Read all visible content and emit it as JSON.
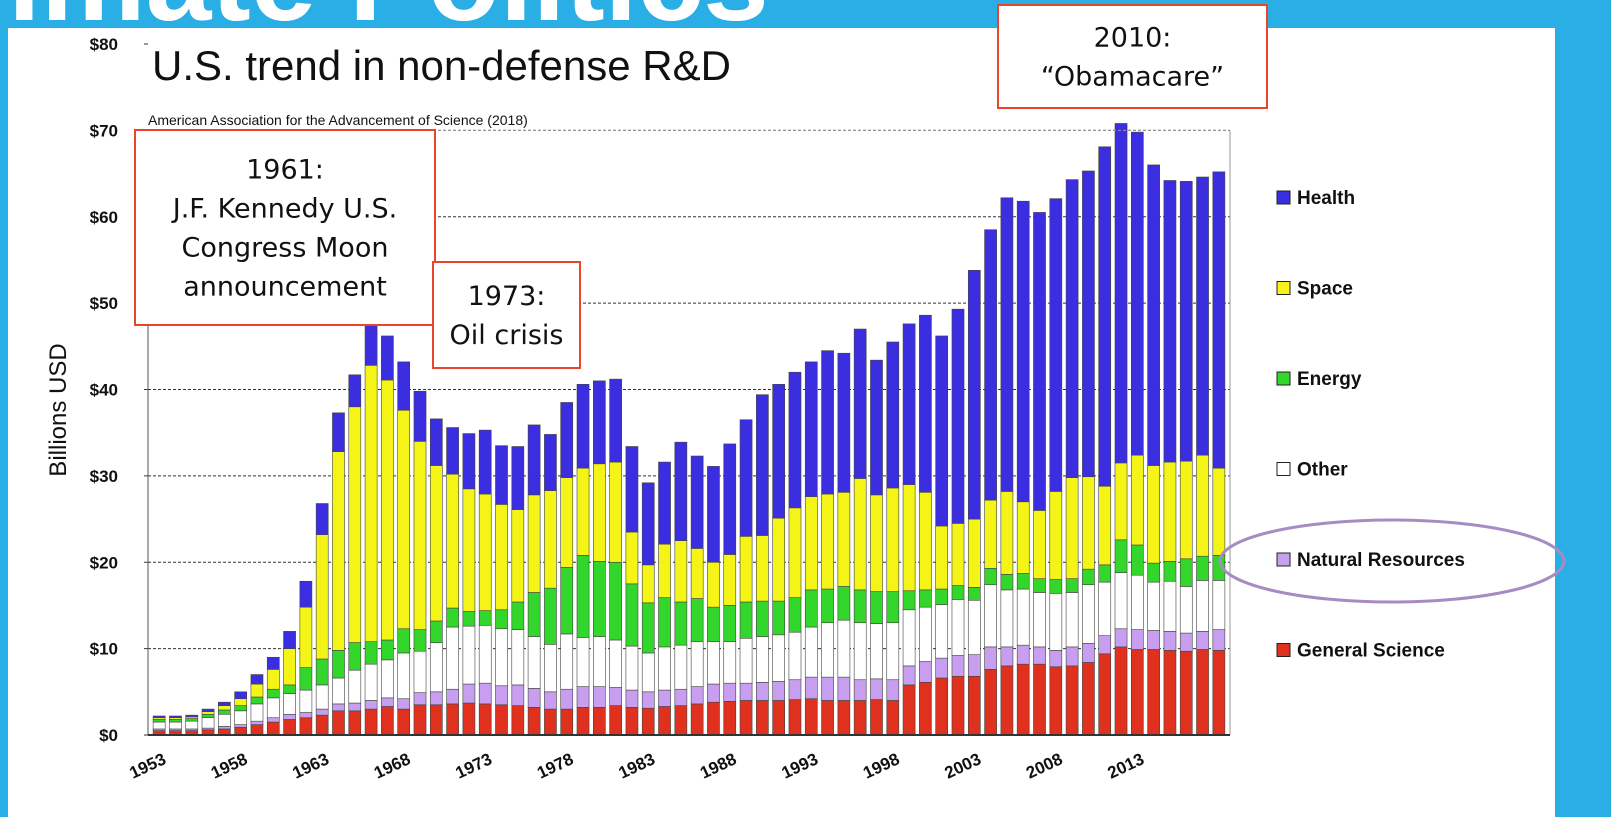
{
  "page_title": "Climate Politics",
  "chart_data": {
    "type": "stacked_bar",
    "title": "U.S. trend in non-defense R&D",
    "subtitle": "American Association for the Advancement of Science (2018)",
    "y_label": "Billions USD",
    "categories": [
      "1953",
      null,
      null,
      null,
      null,
      "1958",
      null,
      null,
      null,
      null,
      "1963",
      null,
      null,
      null,
      null,
      "1968",
      null,
      null,
      null,
      null,
      "1973",
      null,
      null,
      null,
      null,
      "1978",
      null,
      null,
      null,
      null,
      "1983",
      null,
      null,
      null,
      null,
      "1988",
      null,
      null,
      null,
      null,
      "1993",
      null,
      null,
      null,
      null,
      "1998",
      null,
      null,
      null,
      null,
      "2003",
      null,
      null,
      null,
      null,
      "2008",
      null,
      null,
      null,
      null,
      "2013",
      null,
      null,
      null,
      null,
      null
    ],
    "ylim": [
      0,
      80
    ],
    "yticks": [
      {
        "value": 0,
        "label": "$0"
      },
      {
        "value": 10,
        "label": "$10"
      },
      {
        "value": 20,
        "label": "$20"
      },
      {
        "value": 30,
        "label": "$30"
      },
      {
        "value": 40,
        "label": "$40"
      },
      {
        "value": 50,
        "label": "$50"
      },
      {
        "value": 60,
        "label": "$60"
      },
      {
        "value": 70,
        "label": "$70"
      },
      {
        "value": 80,
        "label": "$80"
      }
    ],
    "grid": true,
    "legend": "right",
    "series": [
      {
        "name": "General Science",
        "color": "#e0301e",
        "values": [
          0.5,
          0.5,
          0.5,
          0.6,
          0.7,
          0.9,
          1.2,
          1.5,
          1.8,
          2.0,
          2.3,
          2.8,
          2.8,
          3.0,
          3.3,
          3.0,
          3.5,
          3.5,
          3.6,
          3.7,
          3.6,
          3.5,
          3.4,
          3.2,
          3.0,
          3.0,
          3.2,
          3.2,
          3.4,
          3.2,
          3.1,
          3.3,
          3.4,
          3.6,
          3.8,
          3.9,
          4.0,
          4.0,
          4.0,
          4.1,
          4.2,
          4.0,
          4.0,
          4.0,
          4.1,
          4.0,
          5.8,
          6.1,
          6.6,
          6.8,
          6.8,
          7.6,
          8.0,
          8.2,
          8.2,
          7.9,
          8.0,
          8.4,
          9.4,
          10.2,
          9.9,
          9.9,
          9.8,
          9.7,
          9.9,
          9.8
        ]
      },
      {
        "name": "Natural Resources",
        "color": "#c79ef0",
        "values": [
          0.2,
          0.2,
          0.2,
          0.2,
          0.3,
          0.3,
          0.4,
          0.5,
          0.6,
          0.6,
          0.7,
          0.8,
          0.9,
          1.0,
          1.0,
          1.2,
          1.4,
          1.5,
          1.7,
          2.2,
          2.4,
          2.2,
          2.4,
          2.2,
          2.0,
          2.3,
          2.4,
          2.4,
          2.1,
          2.0,
          1.9,
          1.9,
          1.9,
          2.0,
          2.1,
          2.1,
          2.0,
          2.1,
          2.2,
          2.3,
          2.5,
          2.7,
          2.7,
          2.4,
          2.4,
          2.4,
          2.2,
          2.4,
          2.3,
          2.4,
          2.5,
          2.6,
          2.2,
          2.2,
          2.0,
          1.9,
          2.2,
          2.2,
          2.1,
          2.1,
          2.3,
          2.2,
          2.2,
          2.1,
          2.1,
          2.4
        ]
      },
      {
        "name": "Other",
        "color": "#ffffff",
        "values": [
          0.8,
          0.8,
          0.9,
          1.2,
          1.4,
          1.6,
          2.0,
          2.3,
          2.4,
          2.6,
          2.8,
          3.0,
          3.8,
          4.2,
          4.4,
          5.3,
          4.8,
          5.7,
          7.2,
          6.7,
          6.7,
          6.6,
          6.4,
          6.0,
          5.5,
          6.4,
          5.7,
          5.8,
          5.5,
          5.1,
          4.5,
          5.0,
          5.1,
          5.2,
          4.9,
          4.8,
          5.2,
          5.3,
          5.4,
          5.5,
          5.8,
          6.3,
          6.6,
          6.6,
          6.4,
          6.6,
          6.5,
          6.3,
          6.2,
          6.5,
          6.3,
          7.2,
          6.6,
          6.5,
          6.3,
          6.6,
          6.3,
          6.8,
          6.2,
          6.5,
          6.3,
          5.6,
          5.8,
          5.4,
          5.9,
          5.7
        ]
      },
      {
        "name": "Energy",
        "color": "#33d62a",
        "values": [
          0.3,
          0.3,
          0.3,
          0.4,
          0.5,
          0.6,
          0.8,
          1.0,
          1.0,
          2.6,
          3.0,
          3.2,
          3.2,
          2.6,
          2.3,
          2.8,
          2.5,
          2.5,
          2.2,
          1.7,
          1.7,
          2.2,
          3.2,
          5.1,
          6.5,
          7.7,
          9.5,
          8.7,
          9.0,
          7.2,
          5.8,
          5.7,
          5.0,
          5.0,
          4.0,
          4.2,
          4.2,
          4.1,
          3.9,
          4.0,
          4.3,
          3.9,
          3.9,
          3.8,
          3.7,
          3.6,
          2.2,
          2.0,
          1.8,
          1.6,
          1.5,
          1.9,
          1.8,
          1.8,
          1.6,
          1.6,
          1.6,
          1.8,
          2.0,
          3.8,
          3.5,
          2.2,
          2.3,
          3.2,
          2.8,
          2.9
        ]
      },
      {
        "name": "Space",
        "color": "#f4f416",
        "values": [
          0.2,
          0.2,
          0.2,
          0.3,
          0.5,
          0.8,
          1.5,
          2.3,
          4.2,
          7.0,
          14.4,
          23.0,
          27.3,
          32.0,
          30.1,
          25.3,
          21.8,
          18.0,
          15.5,
          14.2,
          13.5,
          12.2,
          10.7,
          11.3,
          11.3,
          10.4,
          10.1,
          11.3,
          11.6,
          6.0,
          4.4,
          6.2,
          7.1,
          5.8,
          5.2,
          5.9,
          7.6,
          7.6,
          9.6,
          10.4,
          10.8,
          11.0,
          10.9,
          12.9,
          11.2,
          12.0,
          12.3,
          11.3,
          7.3,
          7.2,
          7.9,
          7.9,
          9.6,
          8.3,
          7.9,
          10.2,
          11.7,
          10.7,
          9.1,
          8.9,
          10.4,
          11.3,
          11.5,
          11.3,
          11.7,
          10.1
        ]
      },
      {
        "name": "Health",
        "color": "#3a2ee0",
        "values": [
          0.2,
          0.2,
          0.2,
          0.3,
          0.4,
          0.8,
          1.1,
          1.4,
          2.0,
          3.0,
          3.6,
          4.5,
          3.7,
          4.7,
          5.1,
          5.6,
          5.8,
          5.4,
          5.4,
          6.4,
          7.4,
          6.8,
          7.3,
          8.1,
          6.5,
          8.7,
          9.7,
          9.6,
          9.6,
          9.9,
          9.5,
          9.5,
          11.4,
          10.7,
          11.1,
          12.8,
          13.5,
          16.3,
          15.5,
          15.7,
          15.6,
          16.6,
          16.1,
          17.3,
          15.6,
          16.9,
          18.6,
          20.5,
          22.0,
          24.8,
          28.8,
          31.3,
          34.0,
          34.8,
          34.5,
          33.9,
          34.5,
          35.4,
          39.3,
          39.3,
          37.4,
          34.8,
          32.6,
          32.4,
          32.2,
          34.3
        ]
      }
    ],
    "annotations": [
      [
        "1961:",
        "J.F. Kennedy U.S.",
        "Congress Moon",
        "announcement"
      ],
      [
        "1973:",
        "Oil crisis"
      ],
      [
        "2010:",
        "“Obamacare”"
      ]
    ]
  }
}
